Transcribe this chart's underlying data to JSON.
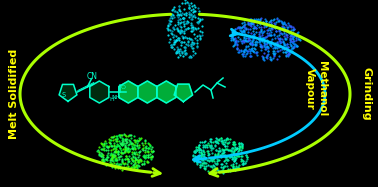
{
  "background_color": "#000000",
  "figsize": [
    3.78,
    1.87
  ],
  "dpi": 100,
  "outer_arrow_color": "#aaff00",
  "inner_arrow_color": "#00ccff",
  "text_color": "#ffff00",
  "label_melt": "Melt Solidified",
  "label_grinding": "Grinding",
  "label_methanol": "Methanol\nVapour",
  "mol_color": "#00ffcc",
  "mol_fill": "#00cc44",
  "mol_fill_dark": "#003311"
}
